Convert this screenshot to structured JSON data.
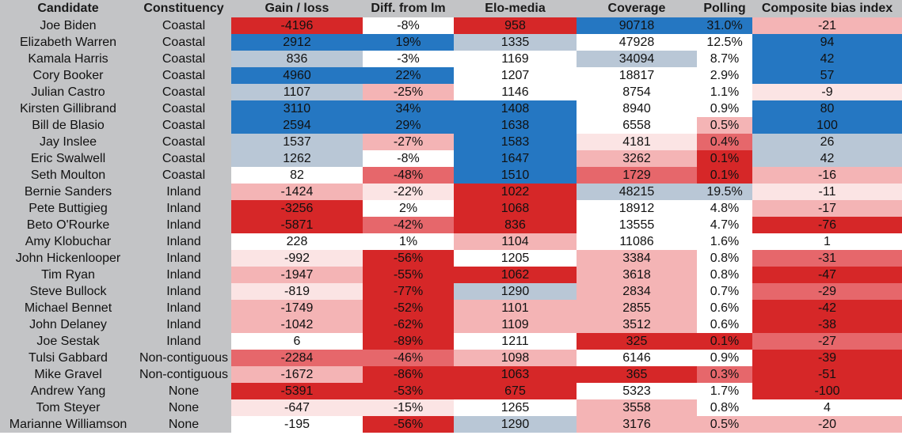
{
  "colors": {
    "red_strong": "#d62728",
    "red_mid": "#e6676b",
    "red_light": "#f4b4b5",
    "red_faint": "#fbe4e4",
    "white": "#ffffff",
    "blue_strong": "#2577c2",
    "blue_light": "#b9c7d6",
    "gray": "#c3c4c6"
  },
  "table": {
    "headers": [
      "Candidate",
      "Constituency",
      "Gain / loss",
      "Diff. from lm",
      "Elo-media",
      "Coverage",
      "Polling",
      "Composite bias index"
    ],
    "rows": [
      {
        "cells": [
          "Joe Biden",
          "Coastal",
          "-4196",
          "-8%",
          "958",
          "90718",
          "31.0%",
          "-21"
        ],
        "shades": [
          "red_strong",
          "white",
          "red_strong",
          "blue_strong",
          "blue_strong",
          "red_light"
        ]
      },
      {
        "cells": [
          "Elizabeth Warren",
          "Coastal",
          "2912",
          "19%",
          "1335",
          "47928",
          "12.5%",
          "94"
        ],
        "shades": [
          "blue_strong",
          "blue_strong",
          "blue_light",
          "white",
          "white",
          "blue_strong"
        ]
      },
      {
        "cells": [
          "Kamala Harris",
          "Coastal",
          "836",
          "-3%",
          "1169",
          "34094",
          "8.7%",
          "42"
        ],
        "shades": [
          "blue_light",
          "white",
          "white",
          "blue_light",
          "white",
          "blue_strong"
        ]
      },
      {
        "cells": [
          "Cory Booker",
          "Coastal",
          "4960",
          "22%",
          "1207",
          "18817",
          "2.9%",
          "57"
        ],
        "shades": [
          "blue_strong",
          "blue_strong",
          "white",
          "white",
          "white",
          "blue_strong"
        ]
      },
      {
        "cells": [
          "Julian Castro",
          "Coastal",
          "1107",
          "-25%",
          "1146",
          "8754",
          "1.1%",
          "-9"
        ],
        "shades": [
          "blue_light",
          "red_light",
          "white",
          "white",
          "white",
          "red_faint"
        ]
      },
      {
        "cells": [
          "Kirsten Gillibrand",
          "Coastal",
          "3110",
          "34%",
          "1408",
          "8940",
          "0.9%",
          "80"
        ],
        "shades": [
          "blue_strong",
          "blue_strong",
          "blue_strong",
          "white",
          "white",
          "blue_strong"
        ]
      },
      {
        "cells": [
          "Bill de Blasio",
          "Coastal",
          "2594",
          "29%",
          "1638",
          "6558",
          "0.5%",
          "100"
        ],
        "shades": [
          "blue_strong",
          "blue_strong",
          "blue_strong",
          "white",
          "red_light",
          "blue_strong"
        ]
      },
      {
        "cells": [
          "Jay Inslee",
          "Coastal",
          "1537",
          "-27%",
          "1583",
          "4181",
          "0.4%",
          "26"
        ],
        "shades": [
          "blue_light",
          "red_light",
          "blue_strong",
          "red_faint",
          "red_mid",
          "blue_light"
        ]
      },
      {
        "cells": [
          "Eric Swalwell",
          "Coastal",
          "1262",
          "-8%",
          "1647",
          "3262",
          "0.1%",
          "42"
        ],
        "shades": [
          "blue_light",
          "white",
          "blue_strong",
          "red_light",
          "red_strong",
          "blue_light"
        ]
      },
      {
        "cells": [
          "Seth Moulton",
          "Coastal",
          "82",
          "-48%",
          "1510",
          "1729",
          "0.1%",
          "-16"
        ],
        "shades": [
          "white",
          "red_mid",
          "blue_strong",
          "red_mid",
          "red_strong",
          "red_light"
        ]
      },
      {
        "cells": [
          "Bernie Sanders",
          "Inland",
          "-1424",
          "-22%",
          "1022",
          "48215",
          "19.5%",
          "-11"
        ],
        "shades": [
          "red_light",
          "red_faint",
          "red_strong",
          "blue_light",
          "blue_light",
          "red_faint"
        ]
      },
      {
        "cells": [
          "Pete Buttigieg",
          "Inland",
          "-3256",
          "2%",
          "1068",
          "18912",
          "4.8%",
          "-17"
        ],
        "shades": [
          "red_strong",
          "white",
          "red_strong",
          "white",
          "white",
          "red_light"
        ]
      },
      {
        "cells": [
          "Beto O'Rourke",
          "Inland",
          "-5871",
          "-42%",
          "836",
          "13555",
          "4.7%",
          "-76"
        ],
        "shades": [
          "red_strong",
          "red_mid",
          "red_strong",
          "white",
          "white",
          "red_strong"
        ]
      },
      {
        "cells": [
          "Amy Klobuchar",
          "Inland",
          "228",
          "1%",
          "1104",
          "11086",
          "1.6%",
          "1"
        ],
        "shades": [
          "white",
          "white",
          "red_light",
          "white",
          "white",
          "white"
        ]
      },
      {
        "cells": [
          "John Hickenlooper",
          "Inland",
          "-992",
          "-56%",
          "1205",
          "3384",
          "0.8%",
          "-31"
        ],
        "shades": [
          "red_faint",
          "red_strong",
          "white",
          "red_light",
          "white",
          "red_mid"
        ]
      },
      {
        "cells": [
          "Tim Ryan",
          "Inland",
          "-1947",
          "-55%",
          "1062",
          "3618",
          "0.8%",
          "-47"
        ],
        "shades": [
          "red_light",
          "red_strong",
          "red_strong",
          "red_light",
          "white",
          "red_strong"
        ]
      },
      {
        "cells": [
          "Steve Bullock",
          "Inland",
          "-819",
          "-77%",
          "1290",
          "2834",
          "0.7%",
          "-29"
        ],
        "shades": [
          "red_faint",
          "red_strong",
          "blue_light",
          "red_light",
          "white",
          "red_mid"
        ]
      },
      {
        "cells": [
          "Michael Bennet",
          "Inland",
          "-1749",
          "-52%",
          "1101",
          "2855",
          "0.6%",
          "-42"
        ],
        "shades": [
          "red_light",
          "red_strong",
          "red_light",
          "red_light",
          "white",
          "red_strong"
        ]
      },
      {
        "cells": [
          "John Delaney",
          "Inland",
          "-1042",
          "-62%",
          "1109",
          "3512",
          "0.6%",
          "-38"
        ],
        "shades": [
          "red_light",
          "red_strong",
          "red_light",
          "red_light",
          "white",
          "red_strong"
        ]
      },
      {
        "cells": [
          "Joe Sestak",
          "Inland",
          "6",
          "-89%",
          "1211",
          "325",
          "0.1%",
          "-27"
        ],
        "shades": [
          "white",
          "red_strong",
          "white",
          "red_strong",
          "red_strong",
          "red_mid"
        ]
      },
      {
        "cells": [
          "Tulsi Gabbard",
          "Non-contiguous",
          "-2284",
          "-46%",
          "1098",
          "6146",
          "0.9%",
          "-39"
        ],
        "shades": [
          "red_mid",
          "red_mid",
          "red_light",
          "white",
          "white",
          "red_strong"
        ]
      },
      {
        "cells": [
          "Mike Gravel",
          "Non-contiguous",
          "-1672",
          "-86%",
          "1063",
          "365",
          "0.3%",
          "-51"
        ],
        "shades": [
          "red_light",
          "red_strong",
          "red_strong",
          "red_strong",
          "red_mid",
          "red_strong"
        ]
      },
      {
        "cells": [
          "Andrew Yang",
          "None",
          "-5391",
          "-53%",
          "675",
          "5323",
          "1.7%",
          "-100"
        ],
        "shades": [
          "red_strong",
          "red_strong",
          "red_strong",
          "white",
          "white",
          "red_strong"
        ]
      },
      {
        "cells": [
          "Tom Steyer",
          "None",
          "-647",
          "-15%",
          "1265",
          "3558",
          "0.8%",
          "4"
        ],
        "shades": [
          "red_faint",
          "red_faint",
          "white",
          "red_light",
          "white",
          "white"
        ]
      },
      {
        "cells": [
          "Marianne Williamson",
          "None",
          "-195",
          "-56%",
          "1290",
          "3176",
          "0.5%",
          "-20"
        ],
        "shades": [
          "white",
          "red_strong",
          "blue_light",
          "red_light",
          "red_light",
          "red_light"
        ]
      }
    ]
  }
}
